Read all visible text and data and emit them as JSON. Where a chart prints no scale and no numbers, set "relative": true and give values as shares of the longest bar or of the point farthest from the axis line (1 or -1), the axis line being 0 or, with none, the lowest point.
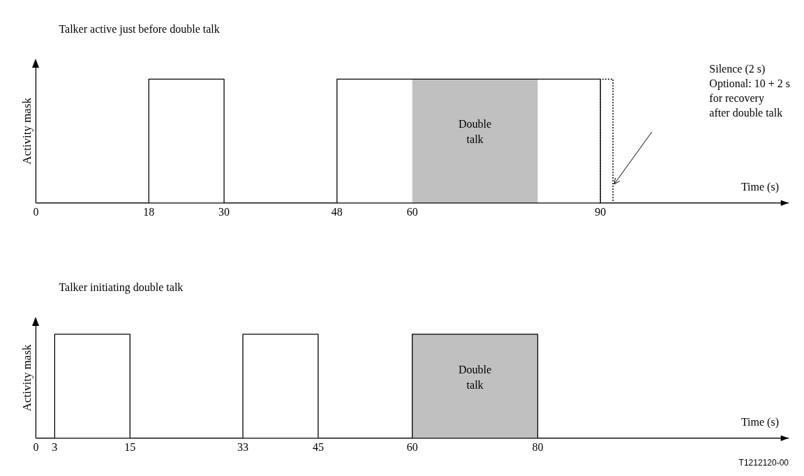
{
  "chart_data": [
    {
      "type": "step",
      "title": "Talker active just before double talk",
      "xlabel": "Time (s)",
      "ylabel": "Activity mask",
      "relative": true,
      "xlim": [
        0,
        120
      ],
      "xticks": [
        0,
        18,
        30,
        48,
        60,
        90
      ],
      "series": [
        {
          "type": "step",
          "color": "#000000",
          "x": [
            0,
            18,
            30,
            48,
            90,
            120
          ],
          "values": [
            0,
            1,
            0,
            1,
            0,
            0
          ]
        },
        {
          "type": "line",
          "color": "#000000",
          "line_style": "dotted",
          "x": [
            90,
            90,
            92,
            92
          ],
          "values": [
            0,
            1,
            1,
            0
          ]
        }
      ],
      "bands": [
        {
          "axis": "x",
          "from": 60,
          "to": 80,
          "label": "Double talk",
          "color": "#c0c0c0"
        }
      ],
      "annotations": [
        "Silence (2 s)\nOptional: 10 + 2 s\nfor recovery\nafter double talk"
      ],
      "grid": false,
      "legend": false,
      "marker": "none"
    },
    {
      "type": "step",
      "title": "Talker initiating double talk",
      "xlabel": "Time (s)",
      "ylabel": "Activity mask",
      "relative": true,
      "xlim": [
        0,
        120
      ],
      "xticks": [
        0,
        3,
        15,
        33,
        45,
        60,
        80
      ],
      "series": [
        {
          "type": "step",
          "color": "#000000",
          "x": [
            0,
            3,
            15,
            33,
            45,
            60,
            80,
            120
          ],
          "values": [
            0,
            1,
            0,
            1,
            0,
            1,
            0,
            0
          ]
        }
      ],
      "bands": [
        {
          "axis": "x",
          "from": 60,
          "to": 80,
          "label": "Double talk",
          "color": "#c0c0c0"
        }
      ],
      "annotations": [
        "T1212120-00"
      ],
      "grid": false,
      "legend": false,
      "marker": "none"
    }
  ]
}
